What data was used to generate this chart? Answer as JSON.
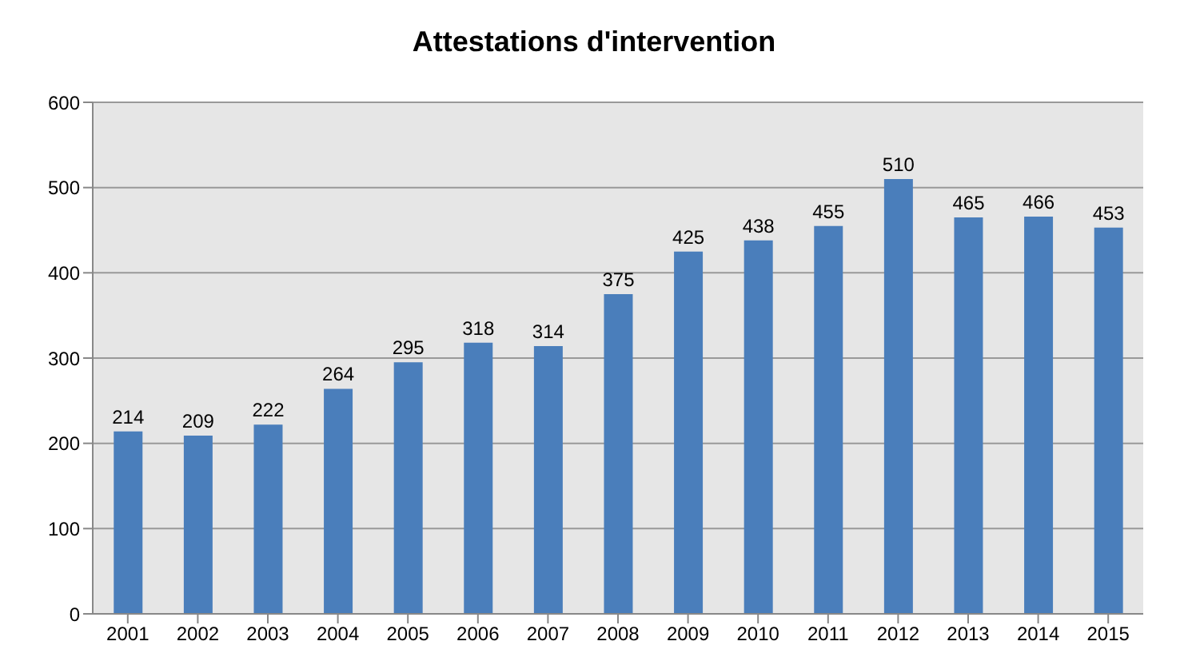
{
  "chart_data": {
    "type": "bar",
    "title": "Attestations d'intervention",
    "categories": [
      "2001",
      "2002",
      "2003",
      "2004",
      "2005",
      "2006",
      "2007",
      "2008",
      "2009",
      "2010",
      "2011",
      "2012",
      "2013",
      "2014",
      "2015"
    ],
    "values": [
      214,
      209,
      222,
      264,
      295,
      318,
      314,
      375,
      425,
      438,
      455,
      510,
      465,
      466,
      453
    ],
    "color": "#4a7ebb",
    "ylim": [
      0,
      600
    ],
    "yticks": [
      0,
      100,
      200,
      300,
      400,
      500,
      600
    ],
    "grid": "y",
    "data_labels": true
  }
}
